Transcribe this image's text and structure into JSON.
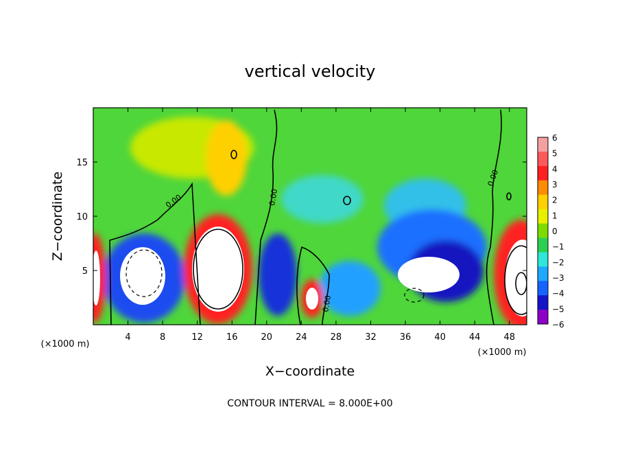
{
  "chart_data": {
    "type": "heatmap",
    "title": "vertical velocity",
    "xlabel": "X−coordinate",
    "ylabel": "Z−coordinate",
    "x_unit_left": "(×1000 m)",
    "x_unit_right": "(×1000 m)",
    "xlim": [
      0,
      50
    ],
    "ylim": [
      0,
      20
    ],
    "xticks": [
      4,
      8,
      12,
      16,
      20,
      24,
      28,
      32,
      36,
      40,
      44,
      48
    ],
    "yticks": [
      5,
      10,
      15
    ],
    "colorbar": {
      "ticks": [
        6,
        5,
        4,
        3,
        2,
        1,
        0,
        -1,
        -2,
        -3,
        -4,
        -5,
        -6
      ],
      "tick_labels": [
        "6",
        "5",
        "4",
        "3",
        "2",
        "1",
        "0",
        "−1",
        "−2",
        "−3",
        "−4",
        "−5",
        "−6"
      ],
      "colors": [
        "#f4a0a0",
        "#ff5a5a",
        "#ff2020",
        "#ff8c00",
        "#ffd000",
        "#e8f000",
        "#7cdc00",
        "#2cd050",
        "#30e6d8",
        "#1ea8ff",
        "#1464ff",
        "#1414c8",
        "#8c00c8"
      ]
    },
    "contour_levels": [
      "0.00",
      "0.00",
      "0.00",
      "0.00",
      "0.00"
    ],
    "annotation": "CONTOUR INTERVAL = 8.000E+00"
  }
}
